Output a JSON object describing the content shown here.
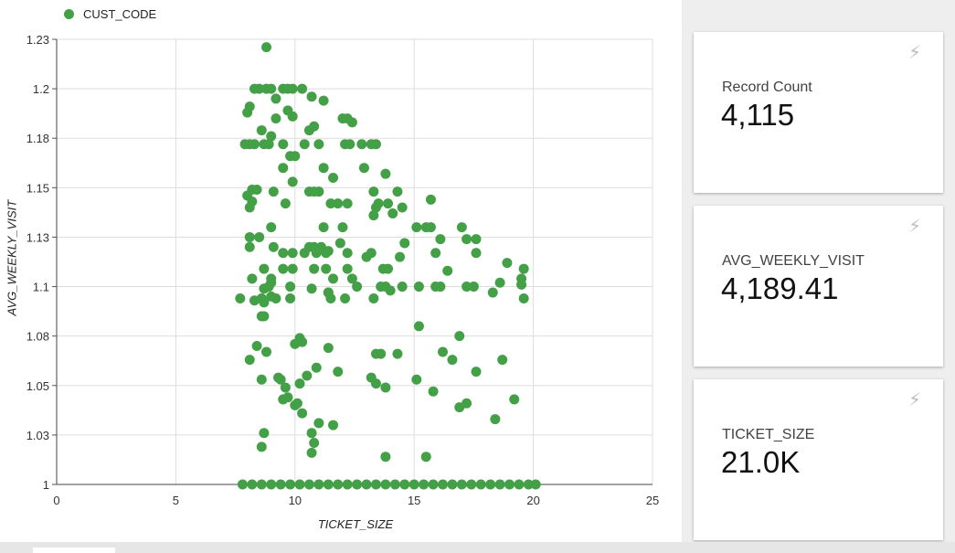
{
  "legend": {
    "label": "CUST_CODE",
    "color": "#43a047"
  },
  "chart_data": {
    "type": "scatter",
    "xlabel": "TICKET_SIZE",
    "ylabel": "AVG_WEEKLY_VISIT",
    "xlim": [
      0,
      25
    ],
    "ylim": [
      1,
      1.225
    ],
    "x_ticks": [
      0,
      5,
      10,
      15,
      20,
      25
    ],
    "y_ticks": [
      1,
      1.025,
      1.05,
      1.075,
      1.1,
      1.125,
      1.15,
      1.175,
      1.2,
      1.225
    ],
    "x_tick_labels": [
      "0",
      "5",
      "10",
      "15",
      "20",
      "25"
    ],
    "y_tick_labels": [
      "1",
      "1.03",
      "1.05",
      "1.08",
      "1.1",
      "1.13",
      "1.15",
      "1.18",
      "1.2",
      "1.23"
    ],
    "grid": true,
    "legend_position": "top-left",
    "series": [
      {
        "name": "CUST_CODE",
        "color": "#43a047",
        "points": [
          [
            8.8,
            1.221
          ],
          [
            8.3,
            1.2
          ],
          [
            8.5,
            1.2
          ],
          [
            8.8,
            1.2
          ],
          [
            9.0,
            1.2
          ],
          [
            9.5,
            1.2
          ],
          [
            9.9,
            1.2
          ],
          [
            10.3,
            1.2
          ],
          [
            9.7,
            1.2
          ],
          [
            9.2,
            1.195
          ],
          [
            10.7,
            1.196
          ],
          [
            11.2,
            1.194
          ],
          [
            8.1,
            1.191
          ],
          [
            8.0,
            1.188
          ],
          [
            9.7,
            1.189
          ],
          [
            9.9,
            1.186
          ],
          [
            9.2,
            1.185
          ],
          [
            12.0,
            1.185
          ],
          [
            12.2,
            1.185
          ],
          [
            12.4,
            1.183
          ],
          [
            10.8,
            1.181
          ],
          [
            10.6,
            1.179
          ],
          [
            8.6,
            1.179
          ],
          [
            9.0,
            1.176
          ],
          [
            7.9,
            1.172
          ],
          [
            8.1,
            1.172
          ],
          [
            8.3,
            1.172
          ],
          [
            8.7,
            1.172
          ],
          [
            8.9,
            1.172
          ],
          [
            9.5,
            1.172
          ],
          [
            10.4,
            1.172
          ],
          [
            11.0,
            1.172
          ],
          [
            12.1,
            1.172
          ],
          [
            12.3,
            1.172
          ],
          [
            12.8,
            1.172
          ],
          [
            13.2,
            1.172
          ],
          [
            13.4,
            1.172
          ],
          [
            10.0,
            1.166
          ],
          [
            9.8,
            1.166
          ],
          [
            9.5,
            1.16
          ],
          [
            11.2,
            1.16
          ],
          [
            12.9,
            1.16
          ],
          [
            13.8,
            1.157
          ],
          [
            11.6,
            1.155
          ],
          [
            9.9,
            1.153
          ],
          [
            8.4,
            1.149
          ],
          [
            8.2,
            1.149
          ],
          [
            9.1,
            1.148
          ],
          [
            10.8,
            1.148
          ],
          [
            11.0,
            1.148
          ],
          [
            10.6,
            1.148
          ],
          [
            13.3,
            1.148
          ],
          [
            14.3,
            1.148
          ],
          [
            8.0,
            1.146
          ],
          [
            8.2,
            1.143
          ],
          [
            8.1,
            1.14
          ],
          [
            9.6,
            1.142
          ],
          [
            11.5,
            1.142
          ],
          [
            11.8,
            1.142
          ],
          [
            13.5,
            1.142
          ],
          [
            13.9,
            1.142
          ],
          [
            13.4,
            1.14
          ],
          [
            12.2,
            1.142
          ],
          [
            14.1,
            1.137
          ],
          [
            14.5,
            1.14
          ],
          [
            15.7,
            1.144
          ],
          [
            13.3,
            1.136
          ],
          [
            9.0,
            1.13
          ],
          [
            11.2,
            1.13
          ],
          [
            12.0,
            1.13
          ],
          [
            15.1,
            1.13
          ],
          [
            15.5,
            1.13
          ],
          [
            15.7,
            1.13
          ],
          [
            17.0,
            1.13
          ],
          [
            8.5,
            1.125
          ],
          [
            8.1,
            1.125
          ],
          [
            16.1,
            1.124
          ],
          [
            17.2,
            1.124
          ],
          [
            17.6,
            1.124
          ],
          [
            11.9,
            1.122
          ],
          [
            14.6,
            1.122
          ],
          [
            9.1,
            1.12
          ],
          [
            8.1,
            1.12
          ],
          [
            10.6,
            1.12
          ],
          [
            10.8,
            1.12
          ],
          [
            11.1,
            1.12
          ],
          [
            11.4,
            1.118
          ],
          [
            9.5,
            1.117
          ],
          [
            9.9,
            1.117
          ],
          [
            10.4,
            1.117
          ],
          [
            10.9,
            1.117
          ],
          [
            11.3,
            1.117
          ],
          [
            12.2,
            1.117
          ],
          [
            13.2,
            1.117
          ],
          [
            15.9,
            1.117
          ],
          [
            17.6,
            1.117
          ],
          [
            13.0,
            1.115
          ],
          [
            14.4,
            1.115
          ],
          [
            8.7,
            1.109
          ],
          [
            10.8,
            1.109
          ],
          [
            9.5,
            1.109
          ],
          [
            9.9,
            1.109
          ],
          [
            11.3,
            1.109
          ],
          [
            12.2,
            1.109
          ],
          [
            13.7,
            1.109
          ],
          [
            13.9,
            1.109
          ],
          [
            16.4,
            1.108
          ],
          [
            19.6,
            1.109
          ],
          [
            18.9,
            1.112
          ],
          [
            8.2,
            1.104
          ],
          [
            9.0,
            1.104
          ],
          [
            9.0,
            1.102
          ],
          [
            11.6,
            1.104
          ],
          [
            12.4,
            1.104
          ],
          [
            13.6,
            1.1
          ],
          [
            14.5,
            1.1
          ],
          [
            16.1,
            1.1
          ],
          [
            17.5,
            1.1
          ],
          [
            17.2,
            1.1
          ],
          [
            18.6,
            1.102
          ],
          [
            19.5,
            1.104
          ],
          [
            19.5,
            1.101
          ],
          [
            8.7,
            1.099
          ],
          [
            9.8,
            1.1
          ],
          [
            8.9,
            1.1
          ],
          [
            10.7,
            1.099
          ],
          [
            11.4,
            1.097
          ],
          [
            12.6,
            1.1
          ],
          [
            13.8,
            1.1
          ],
          [
            14.0,
            1.098
          ],
          [
            15.2,
            1.1
          ],
          [
            15.9,
            1.1
          ],
          [
            18.3,
            1.097
          ],
          [
            7.7,
            1.094
          ],
          [
            8.3,
            1.093
          ],
          [
            8.6,
            1.094
          ],
          [
            8.7,
            1.092
          ],
          [
            9.0,
            1.095
          ],
          [
            9.2,
            1.094
          ],
          [
            9.8,
            1.094
          ],
          [
            11.4,
            1.097
          ],
          [
            11.5,
            1.094
          ],
          [
            13.3,
            1.094
          ],
          [
            12.1,
            1.094
          ],
          [
            15.2,
            1.08
          ],
          [
            19.6,
            1.094
          ],
          [
            8.6,
            1.085
          ],
          [
            8.7,
            1.085
          ],
          [
            10.0,
            1.071
          ],
          [
            10.3,
            1.072
          ],
          [
            10.2,
            1.074
          ],
          [
            8.4,
            1.07
          ],
          [
            11.4,
            1.069
          ],
          [
            13.4,
            1.066
          ],
          [
            13.6,
            1.066
          ],
          [
            14.3,
            1.066
          ],
          [
            16.2,
            1.067
          ],
          [
            16.6,
            1.063
          ],
          [
            16.9,
            1.075
          ],
          [
            8.8,
            1.067
          ],
          [
            8.1,
            1.063
          ],
          [
            18.7,
            1.063
          ],
          [
            10.9,
            1.059
          ],
          [
            9.3,
            1.054
          ],
          [
            9.4,
            1.053
          ],
          [
            10.5,
            1.055
          ],
          [
            11.8,
            1.057
          ],
          [
            13.2,
            1.054
          ],
          [
            13.4,
            1.051
          ],
          [
            15.1,
            1.053
          ],
          [
            17.6,
            1.057
          ],
          [
            8.6,
            1.053
          ],
          [
            10.2,
            1.051
          ],
          [
            9.6,
            1.049
          ],
          [
            9.7,
            1.044
          ],
          [
            9.5,
            1.043
          ],
          [
            10.1,
            1.041
          ],
          [
            10.3,
            1.036
          ],
          [
            10.0,
            1.04
          ],
          [
            13.8,
            1.049
          ],
          [
            15.8,
            1.047
          ],
          [
            17.2,
            1.041
          ],
          [
            16.9,
            1.039
          ],
          [
            19.2,
            1.043
          ],
          [
            18.4,
            1.033
          ],
          [
            8.7,
            1.026
          ],
          [
            11.0,
            1.031
          ],
          [
            10.7,
            1.026
          ],
          [
            10.8,
            1.021
          ],
          [
            11.6,
            1.03
          ],
          [
            8.6,
            1.019
          ],
          [
            10.7,
            1.016
          ],
          [
            13.8,
            1.014
          ],
          [
            15.5,
            1.014
          ],
          [
            7.8,
            1.0
          ],
          [
            8.2,
            1.0
          ],
          [
            8.6,
            1.0
          ],
          [
            9.0,
            1.0
          ],
          [
            9.4,
            1.0
          ],
          [
            9.8,
            1.0
          ],
          [
            10.2,
            1.0
          ],
          [
            10.6,
            1.0
          ],
          [
            11.0,
            1.0
          ],
          [
            11.4,
            1.0
          ],
          [
            11.8,
            1.0
          ],
          [
            12.2,
            1.0
          ],
          [
            12.6,
            1.0
          ],
          [
            13.0,
            1.0
          ],
          [
            13.4,
            1.0
          ],
          [
            13.8,
            1.0
          ],
          [
            14.2,
            1.0
          ],
          [
            14.6,
            1.0
          ],
          [
            15.0,
            1.0
          ],
          [
            15.4,
            1.0
          ],
          [
            15.8,
            1.0
          ],
          [
            16.2,
            1.0
          ],
          [
            16.6,
            1.0
          ],
          [
            17.0,
            1.0
          ],
          [
            17.4,
            1.0
          ],
          [
            17.8,
            1.0
          ],
          [
            18.2,
            1.0
          ],
          [
            18.6,
            1.0
          ],
          [
            19.0,
            1.0
          ],
          [
            19.4,
            1.0
          ],
          [
            19.8,
            1.0
          ],
          [
            20.1,
            1.0
          ]
        ]
      }
    ]
  },
  "scorecards": [
    {
      "label": "Record Count",
      "value": "4,115",
      "icon": "lightning-bolt-icon"
    },
    {
      "label": "AVG_WEEKLY_VISIT",
      "value": "4,189.41",
      "icon": "lightning-bolt-icon"
    },
    {
      "label": "TICKET_SIZE",
      "value": "21.0K",
      "icon": "lightning-bolt-icon"
    }
  ]
}
